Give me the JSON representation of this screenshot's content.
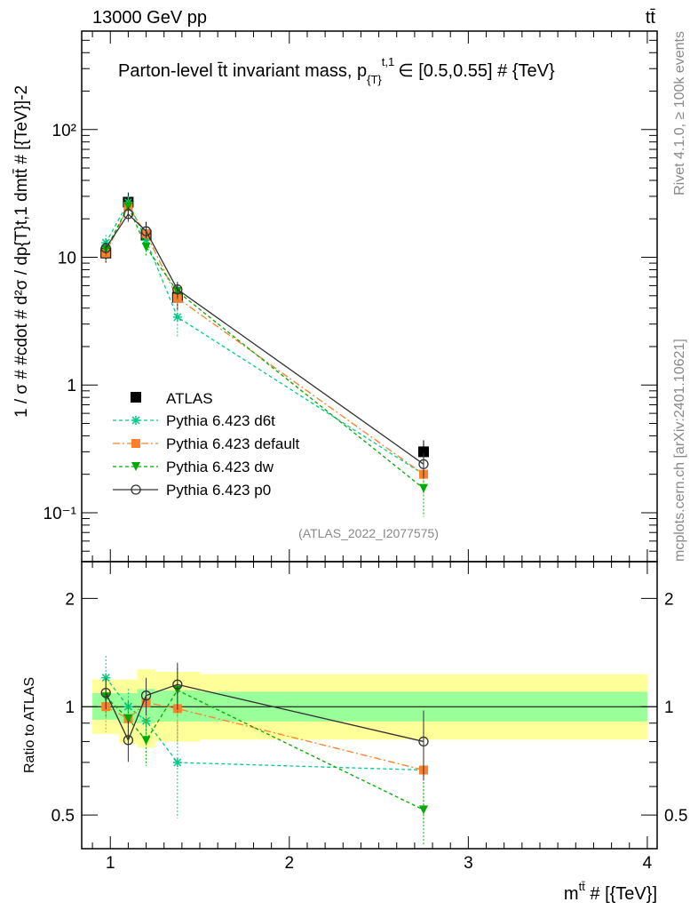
{
  "header": {
    "left": "13000 GeV pp",
    "right": "tt̄"
  },
  "side_labels": {
    "top": "Rivet 4.1.0, ≥ 100k events",
    "bottom": "mcplots.cern.ch [arXiv:2401.10621]"
  },
  "chart_data": {
    "type": "line",
    "title": "Parton-level tt̄ invariant mass, p{T}t,1 ∈ [0.5,0.55] # {TeV}",
    "title_parts": {
      "main": "Parton-level t̄t invariant mass, p",
      "sub": "{T}",
      "sup": "t,1",
      "tail": "∈ [0.5,0.55] # {TeV}"
    },
    "analysis_tag": "(ATLAS_2022_I2077575)",
    "ylabel": "1 / σ # #cdot # d²σ / dp{T}t,1 dmtt̄ # [{TeV}]-2",
    "ylabel_parts": {
      "a": "1 / σ # #cdot # d",
      "b": "2",
      "c": "σ / dp",
      "d": "{T}",
      "e": "t,1",
      "f": " dm",
      "g": "tt̄",
      "h": " # [{TeV}]",
      "i": "-2"
    },
    "ratio_ylabel": "Ratio to ATLAS",
    "xlabel": "mtt̄ # [{TeV}]",
    "xlabel_parts": {
      "a": "m",
      "b": "tt̄",
      "c": " # [{TeV}]"
    },
    "xlim": [
      0.84,
      4.055
    ],
    "ylim": [
      0.0414,
      590
    ],
    "yscale": "log",
    "ratio_ylim": [
      0.403,
      2.53
    ],
    "ratio_yscale": "log",
    "x_ticks": [
      "1",
      "2",
      "3",
      "4"
    ],
    "y_ticks": [
      "10⁻¹",
      "1",
      "10",
      "10²"
    ],
    "ratio_ticks": [
      "0.5",
      "1",
      "2"
    ],
    "legend_position": "center-left",
    "bin_edges": [
      0.9,
      1.05,
      1.15,
      1.25,
      1.5,
      4.0
    ],
    "x": [
      0.975,
      1.1,
      1.2,
      1.375,
      2.75
    ],
    "data": {
      "name": "ATLAS",
      "values": [
        10.8,
        27.0,
        14.9,
        4.86,
        0.3
      ],
      "band_total": [
        [
          0.84,
          1.19
        ],
        [
          0.79,
          1.19
        ],
        [
          0.77,
          1.27
        ],
        [
          0.8,
          1.25
        ],
        [
          0.81,
          1.23
        ]
      ],
      "band_stat": [
        [
          0.92,
          1.09
        ],
        [
          0.9,
          1.09
        ],
        [
          0.9,
          1.12
        ],
        [
          0.91,
          1.11
        ],
        [
          0.91,
          1.1
        ]
      ]
    },
    "series": [
      {
        "name": "Pythia 6.423 d6t",
        "color": "#00cc88",
        "dash": "4,3",
        "marker": "star",
        "values": [
          13.0,
          27.0,
          13.6,
          3.4,
          0.2
        ],
        "rel_err": [
          0.15,
          0.12,
          0.12,
          0.3,
          0.3
        ]
      },
      {
        "name": "Pythia 6.423 default",
        "color": "#ff7f2a",
        "dash": "8,3,2,3",
        "marker": "square",
        "values": [
          10.8,
          25.0,
          15.3,
          4.8,
          0.2
        ],
        "rel_err": [
          0.15,
          0.12,
          0.12,
          0.2,
          0.3
        ]
      },
      {
        "name": "Pythia 6.423 dw",
        "color": "#00aa00",
        "dash": "4,3",
        "marker": "triangle",
        "values": [
          11.5,
          25.0,
          12.0,
          5.4,
          0.155
        ],
        "rel_err": [
          0.12,
          0.12,
          0.15,
          0.15,
          0.4
        ]
      },
      {
        "name": "Pythia 6.423 p0",
        "color": "#333333",
        "dash": "",
        "marker": "circle",
        "values": [
          11.8,
          21.8,
          16.0,
          5.6,
          0.24
        ],
        "rel_err": [
          0.1,
          0.13,
          0.12,
          0.15,
          0.22
        ]
      }
    ]
  }
}
